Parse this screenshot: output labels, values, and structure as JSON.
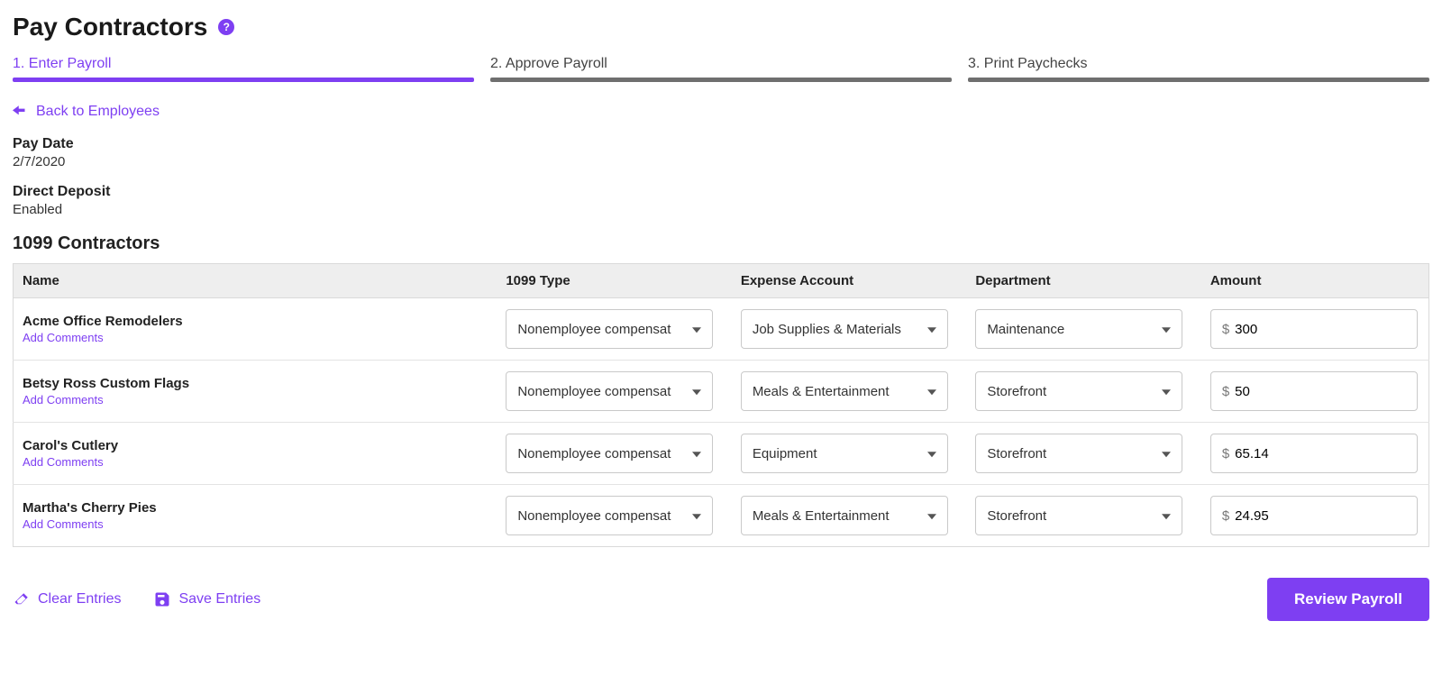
{
  "colors": {
    "accent": "#7e3ff2",
    "step_inactive": "#6f6f6f",
    "header_bg": "#eeeeee",
    "border": "#d9d9d9"
  },
  "header": {
    "title": "Pay Contractors",
    "help_symbol": "?"
  },
  "steps": [
    {
      "label": "1. Enter Payroll",
      "active": true
    },
    {
      "label": "2. Approve Payroll",
      "active": false
    },
    {
      "label": "3. Print Paychecks",
      "active": false
    }
  ],
  "back_link": "Back to Employees",
  "meta": {
    "pay_date_label": "Pay Date",
    "pay_date_value": "2/7/2020",
    "direct_deposit_label": "Direct Deposit",
    "direct_deposit_value": "Enabled"
  },
  "section_title": "1099 Contractors",
  "columns": {
    "name": "Name",
    "type": "1099 Type",
    "expense": "Expense Account",
    "department": "Department",
    "amount": "Amount"
  },
  "add_comments_label": "Add Comments",
  "currency_symbol": "$",
  "rows": [
    {
      "name": "Acme Office Remodelers",
      "type": "Nonemployee compensat",
      "expense": "Job Supplies & Materials",
      "department": "Maintenance",
      "amount": "300"
    },
    {
      "name": "Betsy Ross Custom Flags",
      "type": "Nonemployee compensat",
      "expense": "Meals & Entertainment",
      "department": "Storefront",
      "amount": "50"
    },
    {
      "name": "Carol's Cutlery",
      "type": "Nonemployee compensat",
      "expense": "Equipment",
      "department": "Storefront",
      "amount": "65.14"
    },
    {
      "name": "Martha's Cherry Pies",
      "type": "Nonemployee compensat",
      "expense": "Meals & Entertainment",
      "department": "Storefront",
      "amount": "24.95"
    }
  ],
  "footer": {
    "clear": "Clear Entries",
    "save": "Save Entries",
    "review": "Review Payroll"
  }
}
